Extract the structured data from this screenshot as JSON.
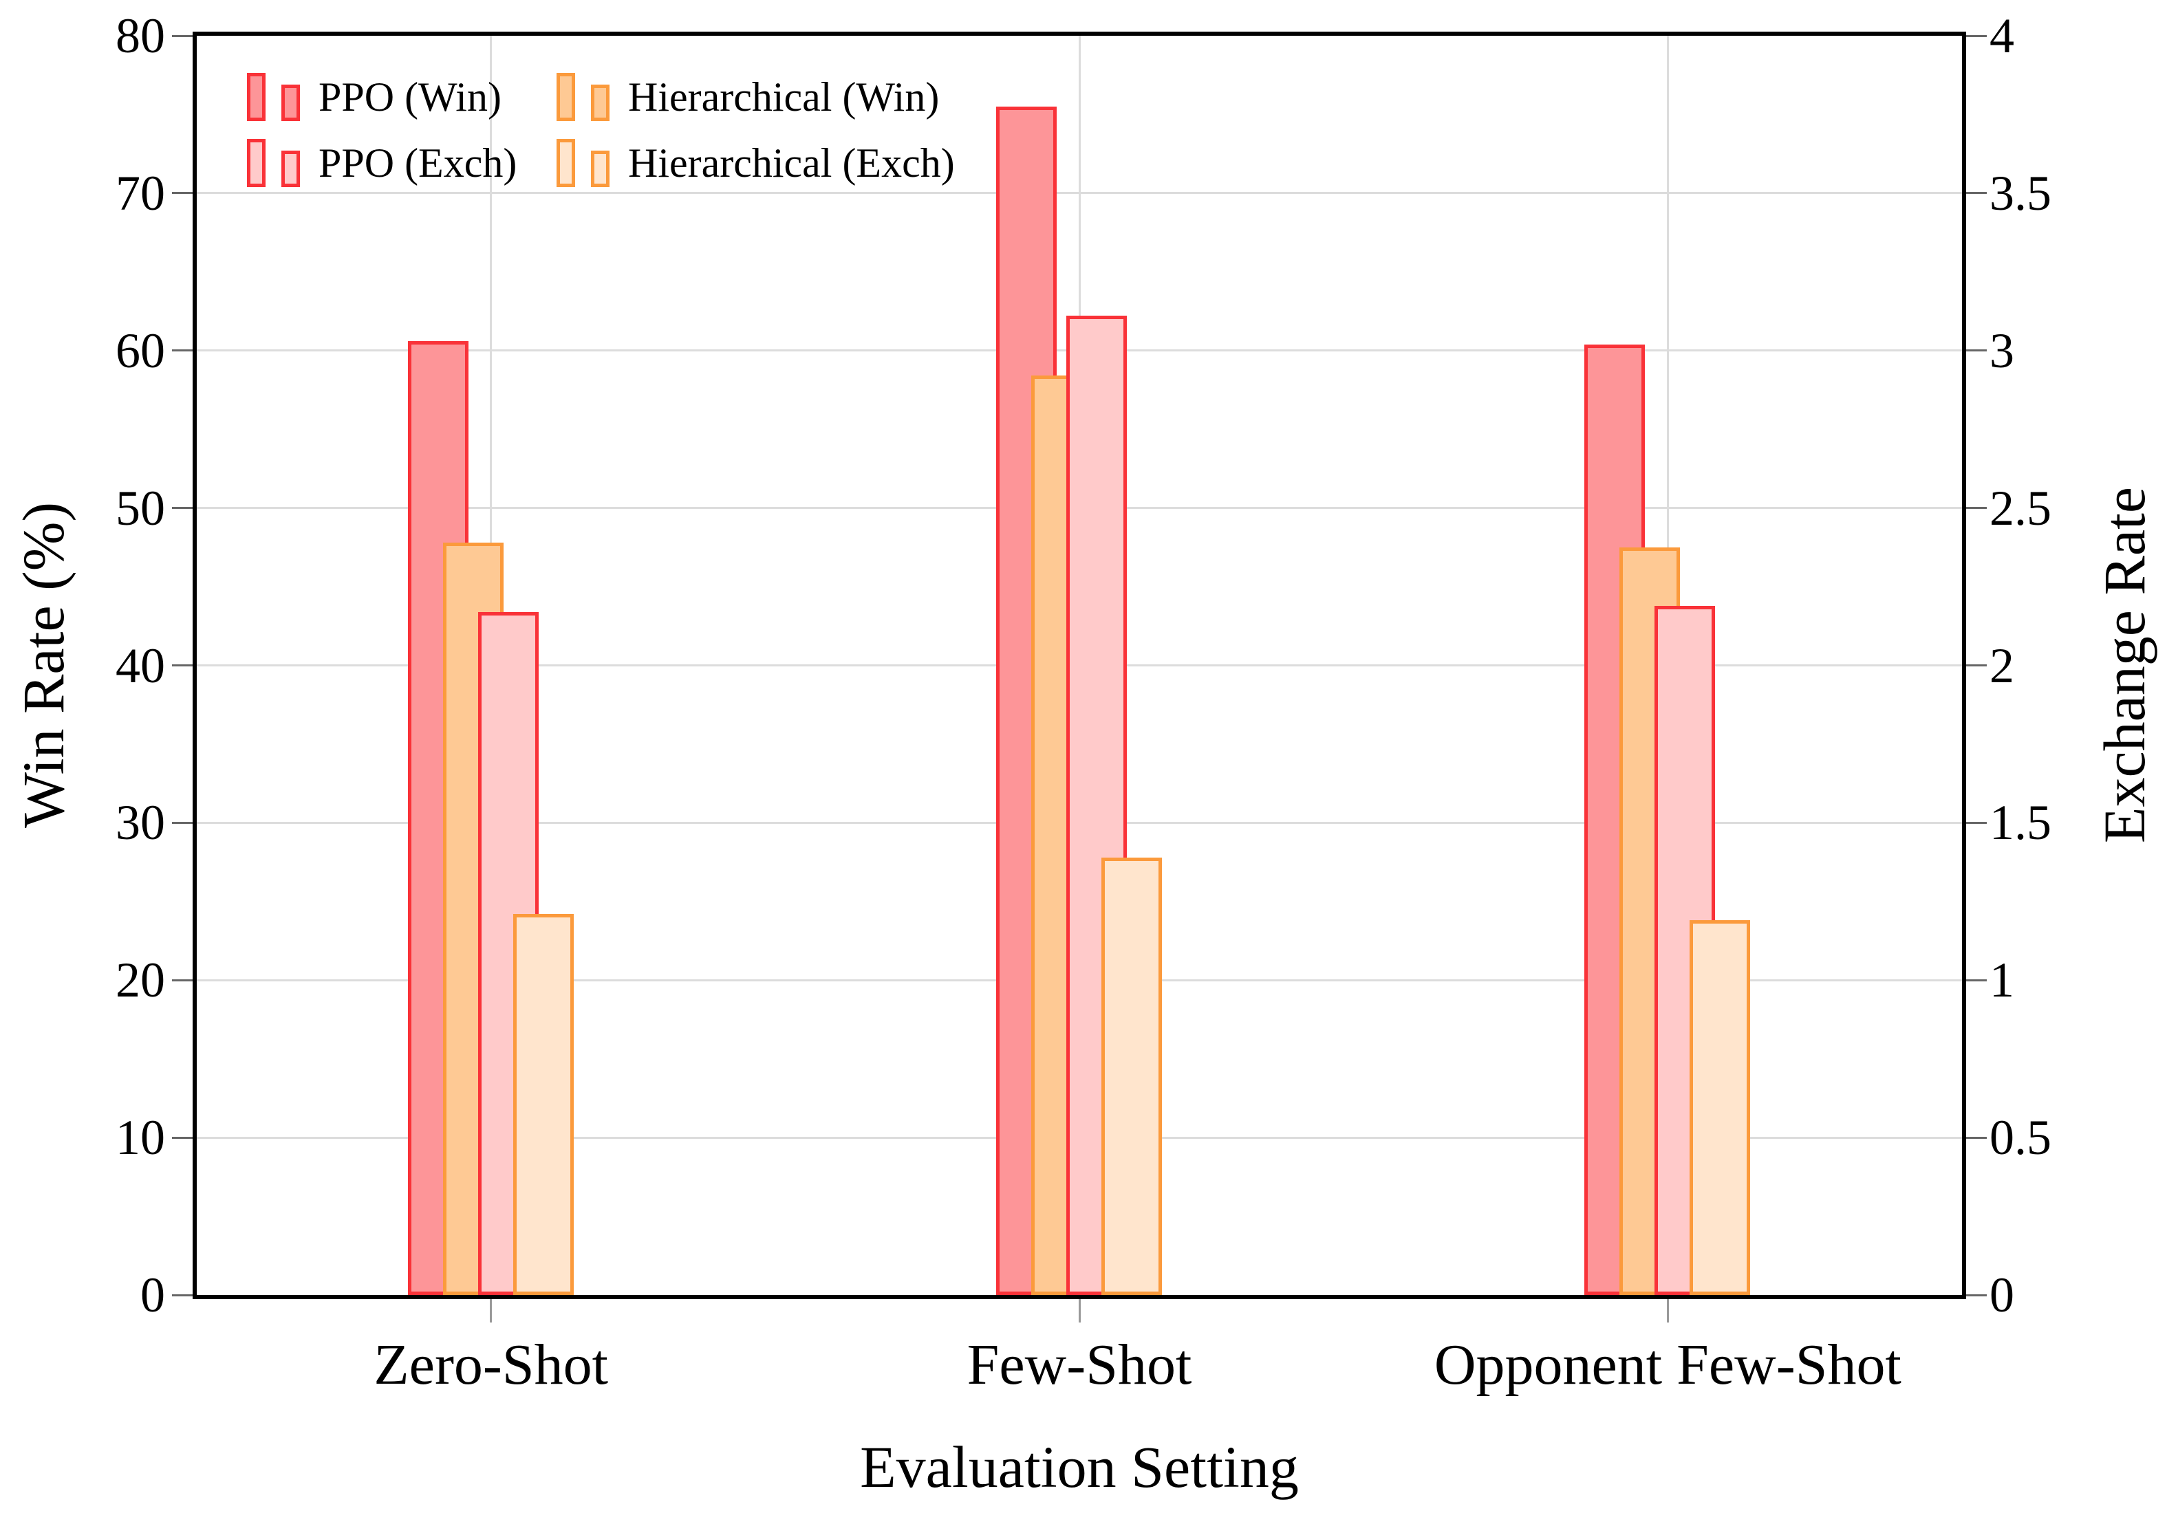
{
  "chart_data": {
    "type": "bar",
    "title": "",
    "xlabel": "Evaluation Setting",
    "ylabel_left": "Win Rate (%)",
    "ylabel_right": "Exchange Rate",
    "categories": [
      "Zero-Shot",
      "Few-Shot",
      "Opponent Few-Shot"
    ],
    "left_axis": {
      "min": 0,
      "max": 80,
      "tick_labels": [
        "0",
        "10",
        "20",
        "30",
        "40",
        "50",
        "60",
        "70",
        "80"
      ]
    },
    "right_axis": {
      "min": 0,
      "max": 4,
      "tick_labels": [
        "0",
        "0.5",
        "1",
        "1.5",
        "2",
        "2.5",
        "3",
        "3.5",
        "4"
      ]
    },
    "grid": "on",
    "legend_position": "top-left",
    "series": [
      {
        "name": "PPO (Win)",
        "axis": "left",
        "fill": "#FD9598",
        "border": "#F93238",
        "values": [
          60.6,
          75.5,
          60.4
        ]
      },
      {
        "name": "Hierarchical (Win)",
        "axis": "left",
        "fill": "#FEC994",
        "border": "#FB9A3C",
        "values": [
          47.8,
          58.4,
          47.5
        ]
      },
      {
        "name": "PPO (Exch)",
        "axis": "right",
        "fill": "#FFCACA",
        "border": "#F93238",
        "values": [
          2.17,
          3.11,
          2.19
        ]
      },
      {
        "name": "Hierarchical (Exch)",
        "axis": "right",
        "fill": "#FFE5CD",
        "border": "#FB9A3C",
        "values": [
          1.21,
          1.39,
          1.19
        ]
      }
    ],
    "legend_order": [
      "PPO (Win)",
      "Hierarchical (Win)",
      "PPO (Exch)",
      "Hierarchical (Exch)"
    ],
    "colors": {
      "ppo_border": "#F93238",
      "ppo_win_fill": "#FD9598",
      "ppo_exch_fill": "#FFCACA",
      "hier_border": "#FB9A3C",
      "hier_win_fill": "#FEC994",
      "hier_exch_fill": "#FFE5CD",
      "gridline": "#dcdcdc",
      "axis_frame": "#000000"
    }
  }
}
